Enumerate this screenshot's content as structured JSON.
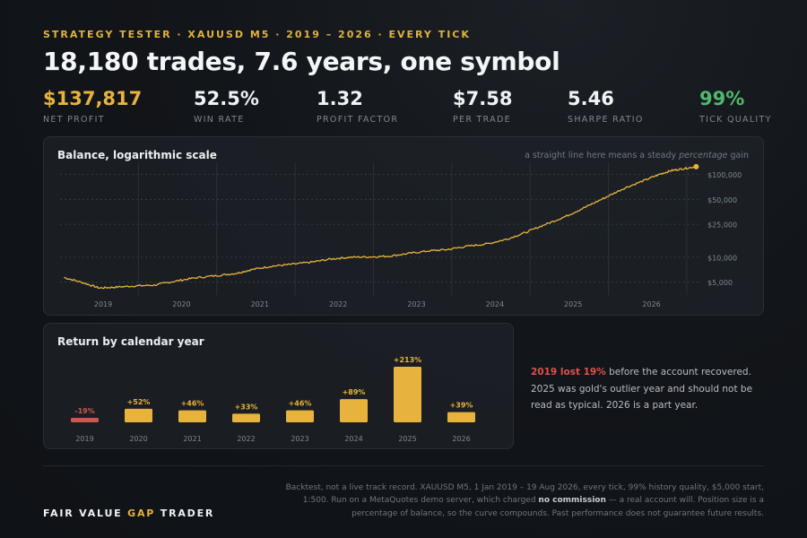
{
  "header": {
    "kicker": "STRATEGY TESTER  ·  XAUUSD M5  ·  2019 – 2026  ·  EVERY TICK",
    "headline": "18,180 trades, 7.6 years, one symbol"
  },
  "kpis": [
    {
      "value": "$137,817",
      "label": "NET PROFIT"
    },
    {
      "value": "52.5%",
      "label": "WIN RATE"
    },
    {
      "value": "1.32",
      "label": "PROFIT FACTOR"
    },
    {
      "value": "$7.58",
      "label": "PER TRADE"
    },
    {
      "value": "5.46",
      "label": "SHARPE RATIO"
    },
    {
      "value": "99%",
      "label": "TICK QUALITY"
    }
  ],
  "colors": {
    "gold": "#e8b33c",
    "red": "#d1544f",
    "green": "#4fb86b",
    "grid": "#3a4048"
  },
  "chart_data": [
    {
      "type": "line",
      "title": "Balance, logarithmic scale",
      "note_prefix": "a straight line here means a steady ",
      "note_em": "percentage",
      "note_suffix": " gain",
      "y_scale": "log",
      "ylim": [
        3500,
        140000
      ],
      "xlim": [
        2018.5,
        2026.65
      ],
      "y_ticks": [
        5000,
        10000,
        25000,
        50000,
        100000
      ],
      "y_tick_labels": [
        "$5,000",
        "$10,000",
        "$25,000",
        "$50,000",
        "$100,000"
      ],
      "x_ticks": [
        2019,
        2020,
        2021,
        2022,
        2023,
        2024,
        2025,
        2026
      ],
      "x_tick_labels": [
        "2019",
        "2020",
        "2021",
        "2022",
        "2023",
        "2024",
        "2025",
        "2026"
      ],
      "grid": true,
      "series": [
        {
          "x": [
            2018.55,
            2018.8,
            2019.0,
            2019.2,
            2019.45,
            2019.7,
            2019.95,
            2020.2,
            2020.5,
            2020.75,
            2020.95,
            2021.2,
            2021.45,
            2021.7,
            2021.95,
            2022.2,
            2022.45,
            2022.7,
            2022.95,
            2023.2,
            2023.45,
            2023.7,
            2023.95,
            2024.2,
            2024.45,
            2024.7,
            2024.95,
            2025.2,
            2025.45,
            2025.7,
            2025.95,
            2026.15,
            2026.3,
            2026.45,
            2026.62
          ],
          "y": [
            5700,
            4900,
            4250,
            4350,
            4500,
            4600,
            5100,
            5600,
            6000,
            6400,
            7100,
            7800,
            8200,
            8700,
            9500,
            10000,
            10100,
            10300,
            11100,
            11900,
            12400,
            13600,
            14500,
            16500,
            20000,
            25000,
            31000,
            40000,
            52000,
            68000,
            84000,
            100000,
            111000,
            117000,
            124000
          ]
        }
      ]
    },
    {
      "type": "bar",
      "title": "Return by calendar year",
      "categories": [
        "2019",
        "2020",
        "2021",
        "2022",
        "2023",
        "2024",
        "2025",
        "2026"
      ],
      "values": [
        -19,
        52,
        46,
        33,
        46,
        89,
        213,
        39
      ],
      "value_labels": [
        "-19%",
        "+52%",
        "+46%",
        "+33%",
        "+46%",
        "+89%",
        "+213%",
        "+39%"
      ]
    }
  ],
  "side_note": {
    "highlight": "2019 lost 19%",
    "rest": " before the account recovered. 2025 was gold's outlier year and should not be read as typical. 2026 is a part year."
  },
  "footer": {
    "brand_a": "FAIR VALUE ",
    "brand_b": "GAP",
    "brand_c": " TRADER",
    "disclaimer_a": "Backtest, not a live track record. XAUUSD M5, 1 Jan 2019 – 19 Aug 2026, every tick, 99% history quality, $5,000 start, 1:500. Run on a MetaQuotes demo server, which charged ",
    "disclaimer_b": "no commission",
    "disclaimer_c": " — a real account will. Position size is a percentage of balance, so the curve compounds. Past performance does not guarantee future results."
  }
}
